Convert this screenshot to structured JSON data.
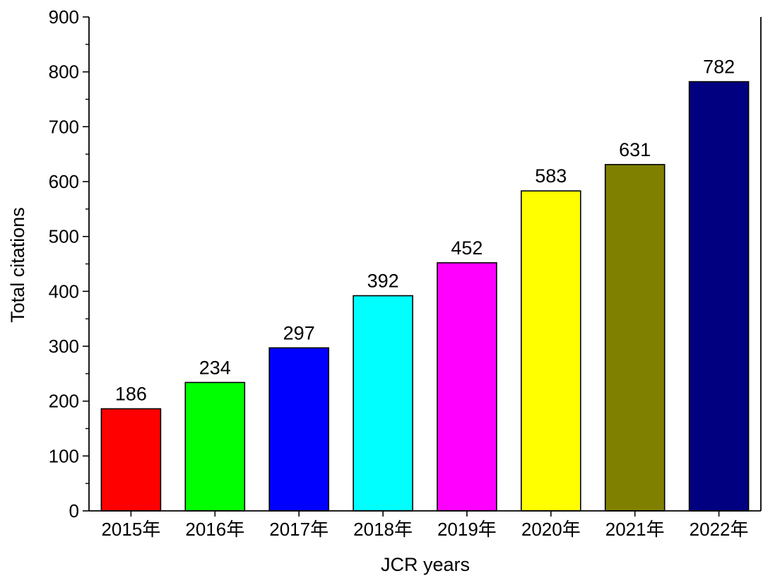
{
  "chart_data": {
    "type": "bar",
    "title": "",
    "xlabel": "JCR years",
    "ylabel": "Total citations",
    "categories": [
      "2015年",
      "2016年",
      "2017年",
      "2018年",
      "2019年",
      "2020年",
      "2021年",
      "2022年"
    ],
    "values": [
      186,
      234,
      297,
      392,
      452,
      583,
      631,
      782
    ],
    "data_labels": [
      "186",
      "234",
      "297",
      "392",
      "452",
      "583",
      "631",
      "782"
    ],
    "colors": [
      "#ff0000",
      "#00ff00",
      "#0000ff",
      "#00ffff",
      "#ff00ff",
      "#ffff00",
      "#808000",
      "#000080"
    ],
    "ylim": [
      0,
      900
    ],
    "yticks": [
      0,
      100,
      200,
      300,
      400,
      500,
      600,
      700,
      800,
      900
    ],
    "ytick_labels": [
      "0",
      "100",
      "200",
      "300",
      "400",
      "500",
      "600",
      "700",
      "800",
      "900"
    ],
    "grid": false,
    "legend": "none"
  }
}
